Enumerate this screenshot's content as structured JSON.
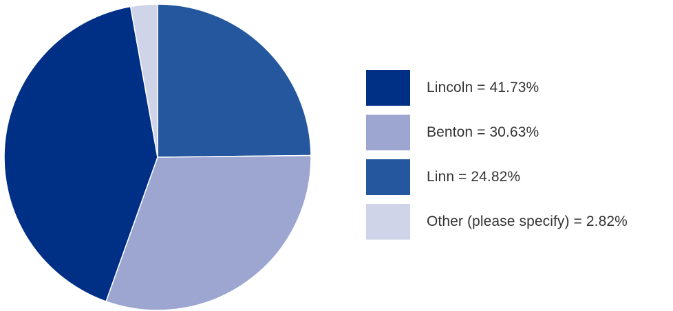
{
  "chart_data": {
    "type": "pie",
    "title": "",
    "slices": [
      {
        "label": "Lincoln = 41.73%",
        "category": "Lincoln",
        "value": 41.73,
        "color": "#002f86"
      },
      {
        "label": "Benton = 30.63%",
        "category": "Benton",
        "value": 30.63,
        "color": "#9ca6d0"
      },
      {
        "label": "Linn = 24.82%",
        "category": "Linn",
        "value": 24.82,
        "color": "#25579e"
      },
      {
        "label": "Other (please specify) = 2.82%",
        "category": "Other (please specify)",
        "value": 2.82,
        "color": "#d0d4e9"
      }
    ],
    "legend_position": "right"
  }
}
